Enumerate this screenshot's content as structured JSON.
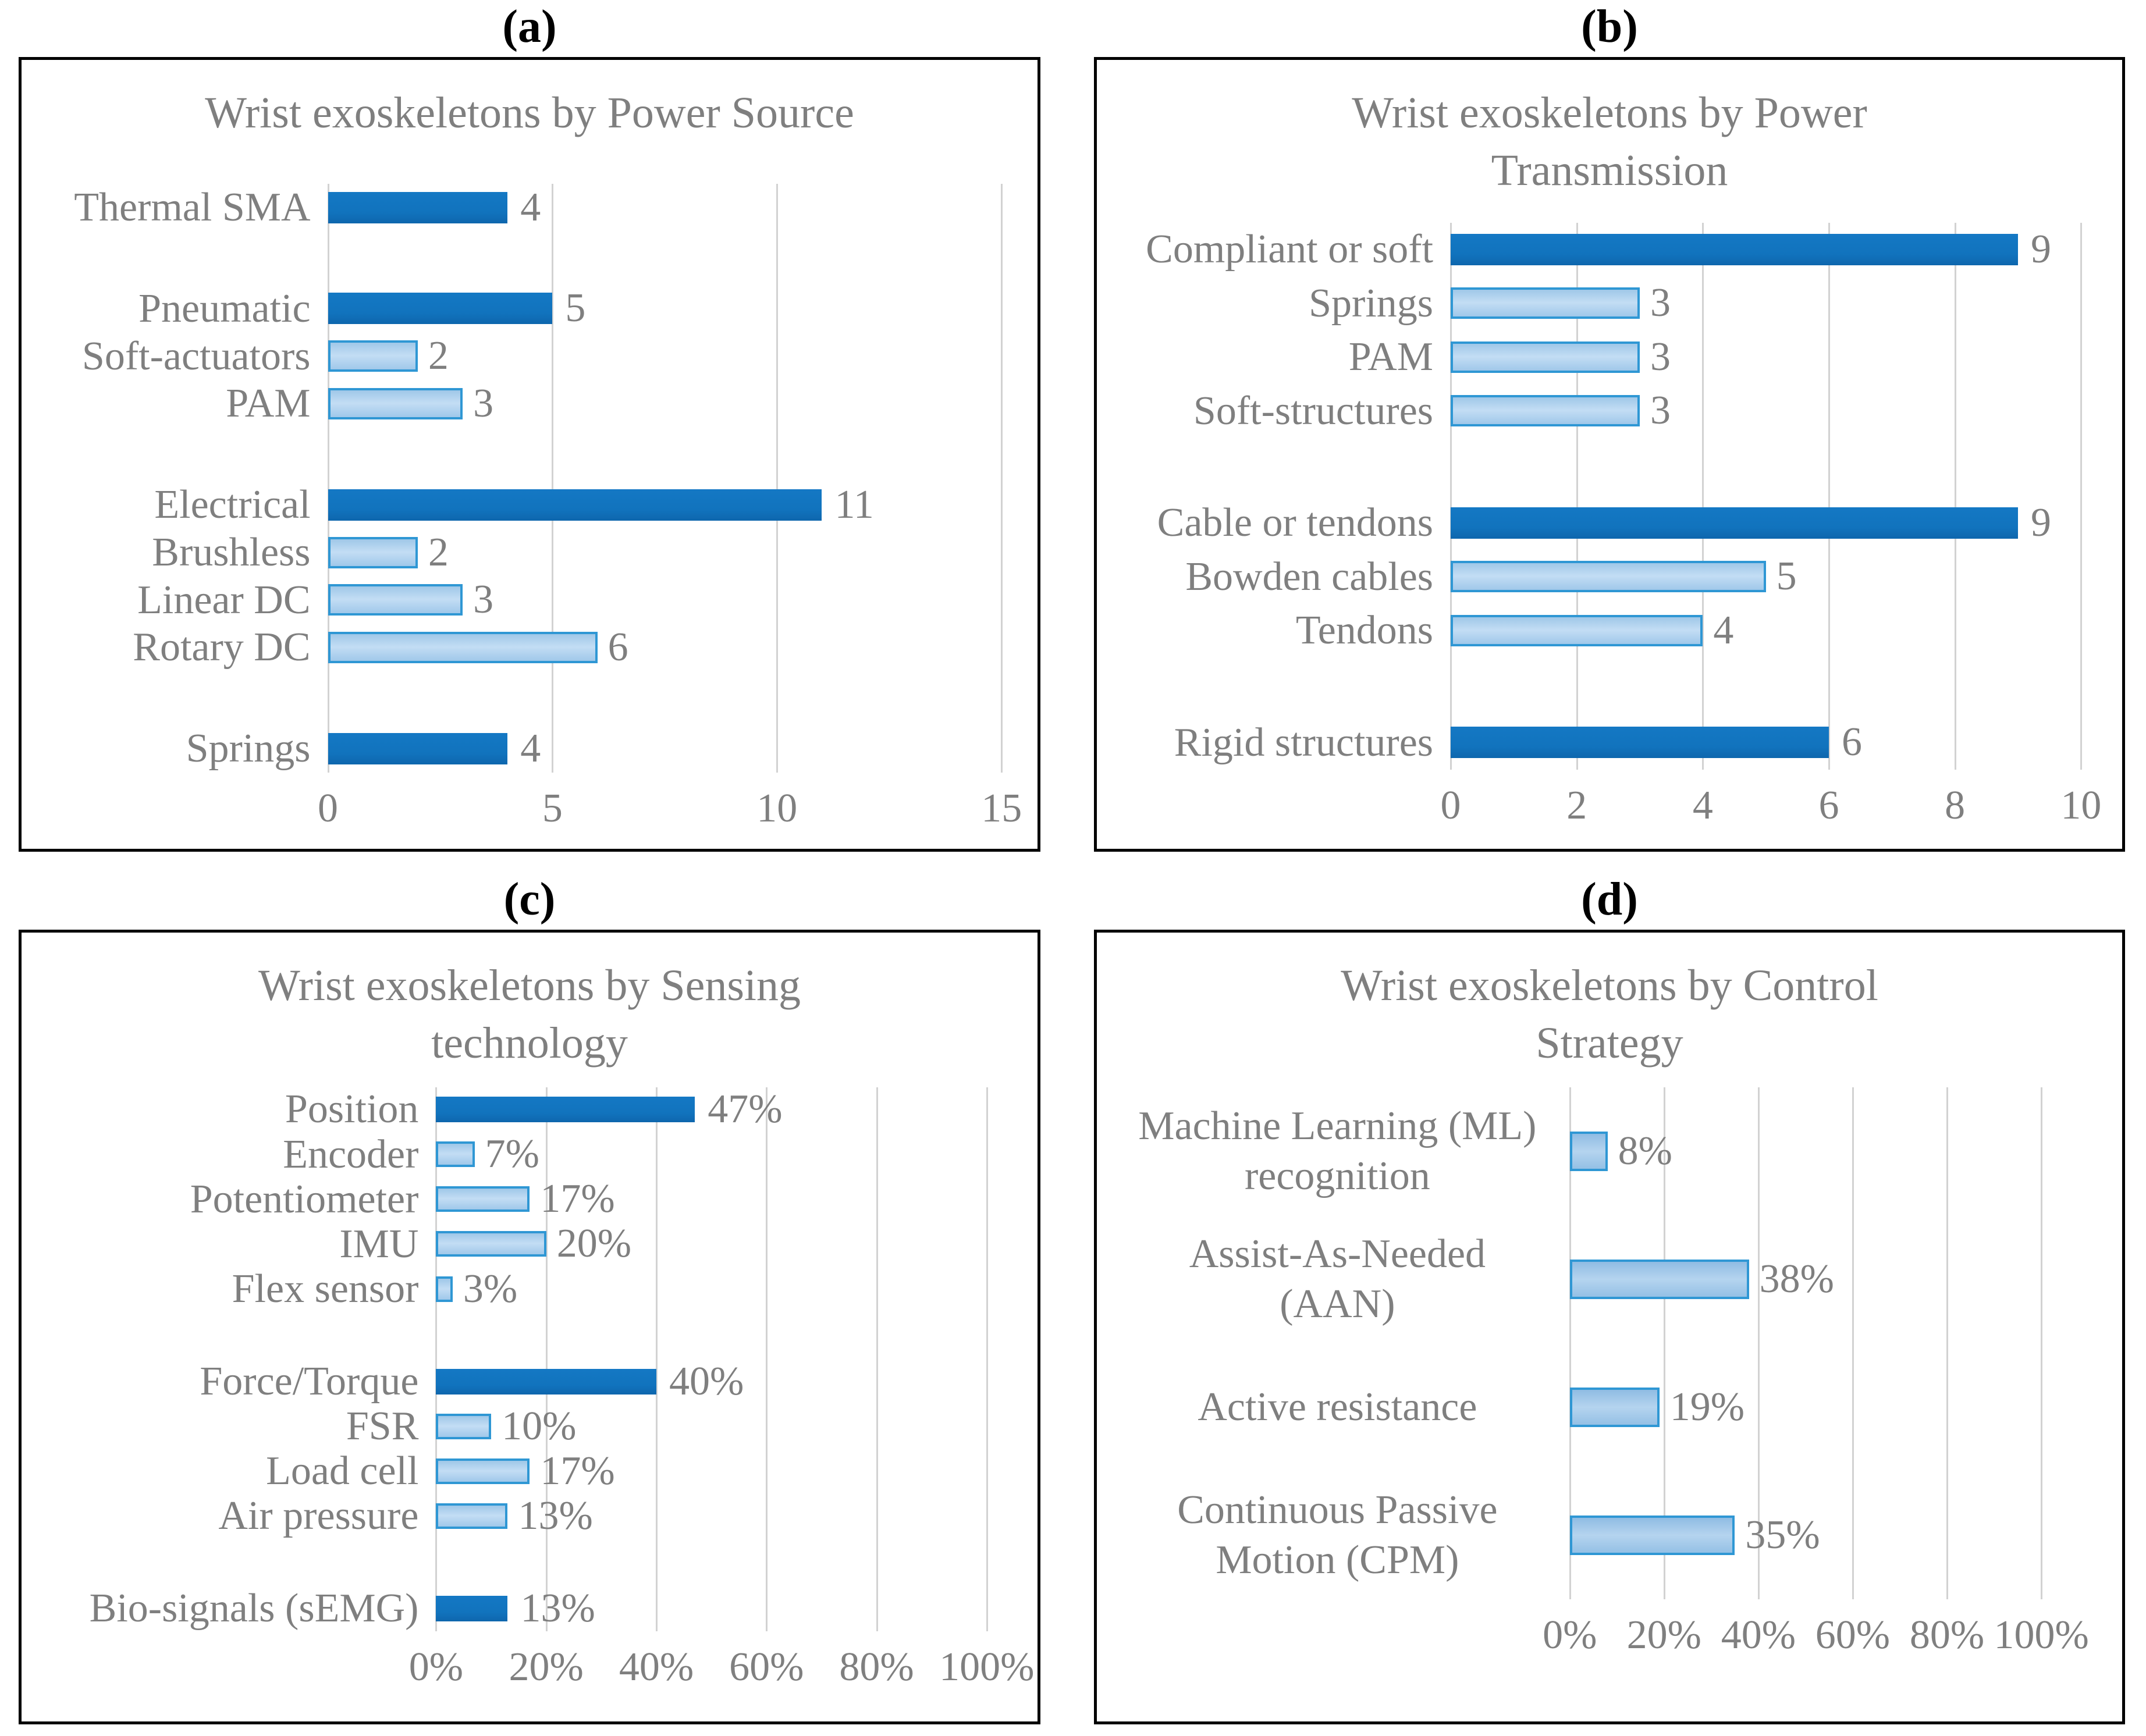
{
  "colors": {
    "bar_dark": "#1173bd",
    "bar_light_border": "#2f97d4",
    "bar_light_fill": "#bcd8f1",
    "text_gray": "#7f7f7f",
    "gridline": "#d2d2d2",
    "panel_border": "#000000"
  },
  "chart_data": [
    {
      "panel_label": "(a)",
      "type": "bar",
      "orientation": "horizontal",
      "title": "Wrist exoskeletons by Power Source",
      "xlabel": "",
      "ylabel": "",
      "x_max": 15,
      "x_ticks": [
        "0",
        "5",
        "10",
        "15"
      ],
      "grid": true,
      "bars": [
        {
          "label": "Thermal SMA",
          "value": 4,
          "display": "4",
          "style": "dark",
          "group_start": true
        },
        {
          "label": "Pneumatic",
          "value": 5,
          "display": "5",
          "style": "dark",
          "group_start": true
        },
        {
          "label": "Soft-actuators",
          "value": 2,
          "display": "2",
          "style": "light",
          "group_start": false
        },
        {
          "label": "PAM",
          "value": 3,
          "display": "3",
          "style": "light",
          "group_start": false
        },
        {
          "label": "Electrical",
          "value": 11,
          "display": "11",
          "style": "dark",
          "group_start": true
        },
        {
          "label": "Brushless",
          "value": 2,
          "display": "2",
          "style": "light",
          "group_start": false
        },
        {
          "label": "Linear DC",
          "value": 3,
          "display": "3",
          "style": "light",
          "group_start": false
        },
        {
          "label": "Rotary DC",
          "value": 6,
          "display": "6",
          "style": "light",
          "group_start": false
        },
        {
          "label": "Springs",
          "value": 4,
          "display": "4",
          "style": "dark",
          "group_start": true
        }
      ]
    },
    {
      "panel_label": "(b)",
      "type": "bar",
      "orientation": "horizontal",
      "title": "Wrist exoskeletons by Power Transmission",
      "xlabel": "",
      "ylabel": "",
      "x_max": 10,
      "x_ticks": [
        "0",
        "2",
        "4",
        "6",
        "8",
        "10"
      ],
      "grid": true,
      "bars": [
        {
          "label": "Compliant or soft",
          "value": 9,
          "display": "9",
          "style": "dark",
          "group_start": true
        },
        {
          "label": "Springs",
          "value": 3,
          "display": "3",
          "style": "light",
          "group_start": false
        },
        {
          "label": "PAM",
          "value": 3,
          "display": "3",
          "style": "light",
          "group_start": false
        },
        {
          "label": "Soft-structures",
          "value": 3,
          "display": "3",
          "style": "light",
          "group_start": false
        },
        {
          "label": "Cable or tendons",
          "value": 9,
          "display": "9",
          "style": "dark",
          "group_start": true
        },
        {
          "label": "Bowden cables",
          "value": 5,
          "display": "5",
          "style": "light",
          "group_start": false
        },
        {
          "label": "Tendons",
          "value": 4,
          "display": "4",
          "style": "light",
          "group_start": false
        },
        {
          "label": "Rigid structures",
          "value": 6,
          "display": "6",
          "style": "dark",
          "group_start": true
        }
      ]
    },
    {
      "panel_label": "(c)",
      "type": "bar",
      "orientation": "horizontal",
      "title": "Wrist exoskeletons by Sensing technology",
      "xlabel": "",
      "ylabel": "",
      "x_max": 100,
      "x_ticks": [
        "0%",
        "20%",
        "40%",
        "60%",
        "80%",
        "100%"
      ],
      "grid": true,
      "bars": [
        {
          "label": "Position",
          "value": 47,
          "display": "47%",
          "style": "dark",
          "group_start": true
        },
        {
          "label": "Encoder",
          "value": 7,
          "display": "7%",
          "style": "light",
          "group_start": false
        },
        {
          "label": "Potentiometer",
          "value": 17,
          "display": "17%",
          "style": "light",
          "group_start": false
        },
        {
          "label": "IMU",
          "value": 20,
          "display": "20%",
          "style": "light",
          "group_start": false
        },
        {
          "label": "Flex sensor",
          "value": 3,
          "display": "3%",
          "style": "light",
          "group_start": false
        },
        {
          "label": "Force/Torque",
          "value": 40,
          "display": "40%",
          "style": "dark",
          "group_start": true
        },
        {
          "label": "FSR",
          "value": 10,
          "display": "10%",
          "style": "light",
          "group_start": false
        },
        {
          "label": "Load cell",
          "value": 17,
          "display": "17%",
          "style": "light",
          "group_start": false
        },
        {
          "label": "Air pressure",
          "value": 13,
          "display": "13%",
          "style": "light",
          "group_start": false
        },
        {
          "label": "Bio-signals (sEMG)",
          "value": 13,
          "display": "13%",
          "style": "dark",
          "group_start": true
        }
      ]
    },
    {
      "panel_label": "(d)",
      "type": "bar",
      "orientation": "horizontal",
      "title": "Wrist exoskeletons by Control Strategy",
      "xlabel": "",
      "ylabel": "",
      "x_max": 100,
      "x_ticks": [
        "0%",
        "20%",
        "40%",
        "60%",
        "80%",
        "100%"
      ],
      "grid": true,
      "bars": [
        {
          "label": "Machine Learning (ML)\nrecognition",
          "value": 8,
          "display": "8%",
          "style": "light",
          "group_start": false
        },
        {
          "label": "Assist-As-Needed\n(AAN)",
          "value": 38,
          "display": "38%",
          "style": "light",
          "group_start": false
        },
        {
          "label": "Active resistance",
          "value": 19,
          "display": "19%",
          "style": "light",
          "group_start": false
        },
        {
          "label": "Continuous Passive\nMotion (CPM)",
          "value": 35,
          "display": "35%",
          "style": "light",
          "group_start": false
        }
      ]
    }
  ]
}
